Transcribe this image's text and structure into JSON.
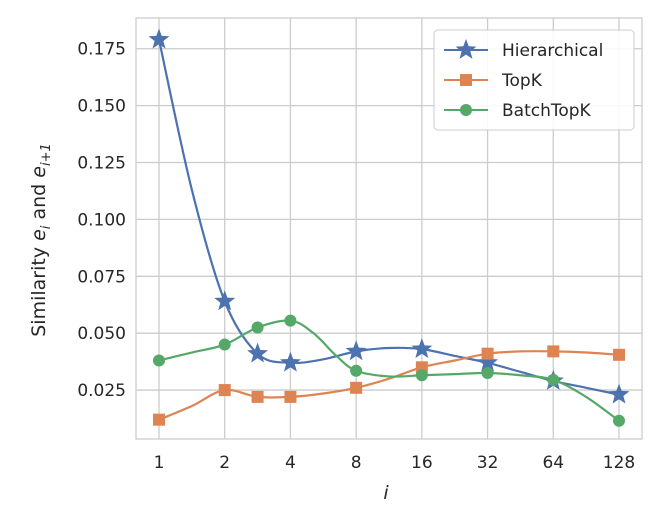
{
  "chart_data": {
    "type": "line",
    "xlabel": "i",
    "ylabel_parts": [
      "Similarity ",
      "e",
      "i",
      " and ",
      "e",
      "i+1"
    ],
    "categories": [
      "1",
      "2",
      "4",
      "8",
      "16",
      "32",
      "64",
      "128"
    ],
    "x_log2": [
      0,
      1,
      2,
      3,
      4,
      5,
      6,
      7
    ],
    "xlim": [
      -0.35,
      7.35
    ],
    "ylim": [
      0.0035,
      0.1885
    ],
    "yticks": [
      0.025,
      0.05,
      0.075,
      0.1,
      0.125,
      0.15,
      0.175
    ],
    "ytick_labels": [
      "0.025",
      "0.050",
      "0.075",
      "0.100",
      "0.125",
      "0.150",
      "0.175"
    ],
    "grid": true,
    "legend": "top-right",
    "series": [
      {
        "name": "Hierarchical",
        "color": "#4c72b0",
        "marker": "star",
        "markers": [
          [
            0,
            0.179
          ],
          [
            1,
            0.064
          ],
          [
            1.5,
            0.041
          ],
          [
            2,
            0.037
          ],
          [
            3,
            0.042
          ],
          [
            4,
            0.043
          ],
          [
            5,
            0.037
          ],
          [
            6,
            0.029
          ],
          [
            7,
            0.023
          ]
        ],
        "curve": [
          [
            0,
            0.179
          ],
          [
            0.5,
            0.113
          ],
          [
            1,
            0.064
          ],
          [
            1.5,
            0.041
          ],
          [
            2,
            0.037
          ],
          [
            2.5,
            0.0385
          ],
          [
            3,
            0.042
          ],
          [
            3.5,
            0.0435
          ],
          [
            4,
            0.043
          ],
          [
            4.5,
            0.04
          ],
          [
            5,
            0.037
          ],
          [
            5.5,
            0.033
          ],
          [
            6,
            0.029
          ],
          [
            6.5,
            0.026
          ],
          [
            7,
            0.023
          ]
        ]
      },
      {
        "name": "TopK",
        "color": "#dd8452",
        "marker": "square",
        "markers": [
          [
            0,
            0.012
          ],
          [
            1,
            0.025
          ],
          [
            1.5,
            0.022
          ],
          [
            2,
            0.022
          ],
          [
            3,
            0.026
          ],
          [
            4,
            0.035
          ],
          [
            5,
            0.041
          ],
          [
            6,
            0.042
          ],
          [
            7,
            0.0405
          ]
        ],
        "curve": [
          [
            0,
            0.012
          ],
          [
            0.5,
            0.018
          ],
          [
            1,
            0.025
          ],
          [
            1.5,
            0.022
          ],
          [
            2,
            0.022
          ],
          [
            2.5,
            0.0235
          ],
          [
            3,
            0.026
          ],
          [
            3.5,
            0.03
          ],
          [
            4,
            0.035
          ],
          [
            4.5,
            0.038
          ],
          [
            5,
            0.041
          ],
          [
            5.5,
            0.042
          ],
          [
            6,
            0.042
          ],
          [
            6.5,
            0.0415
          ],
          [
            7,
            0.0405
          ]
        ]
      },
      {
        "name": "BatchTopK",
        "color": "#55a868",
        "marker": "circle",
        "markers": [
          [
            0,
            0.038
          ],
          [
            1,
            0.045
          ],
          [
            1.5,
            0.0525
          ],
          [
            2,
            0.0555
          ],
          [
            3,
            0.0335
          ],
          [
            4,
            0.0315
          ],
          [
            5,
            0.0325
          ],
          [
            6,
            0.0295
          ],
          [
            7,
            0.0115
          ]
        ],
        "curve": [
          [
            0,
            0.038
          ],
          [
            0.5,
            0.0415
          ],
          [
            1,
            0.045
          ],
          [
            1.5,
            0.0525
          ],
          [
            2,
            0.0555
          ],
          [
            2.35,
            0.05
          ],
          [
            2.7,
            0.04
          ],
          [
            3,
            0.0335
          ],
          [
            3.5,
            0.031
          ],
          [
            4,
            0.0315
          ],
          [
            4.5,
            0.032
          ],
          [
            5,
            0.0325
          ],
          [
            5.5,
            0.0315
          ],
          [
            6,
            0.0295
          ],
          [
            6.5,
            0.022
          ],
          [
            7,
            0.0115
          ]
        ]
      }
    ]
  }
}
